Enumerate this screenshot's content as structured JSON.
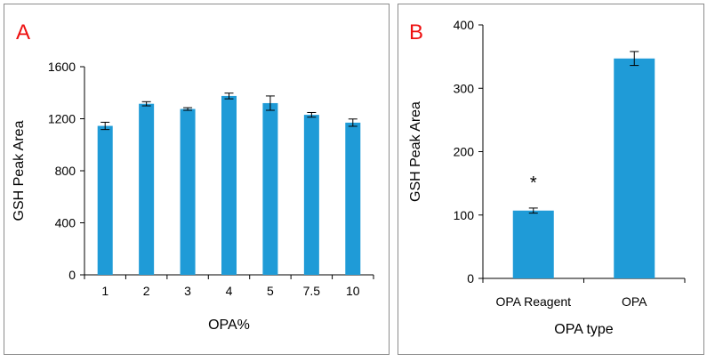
{
  "colors": {
    "bar": "#1f9bd7",
    "panel_label": "#ee1111",
    "frame": "#8c8c8c",
    "axis": "#000000"
  },
  "chart_data": [
    {
      "type": "bar",
      "panel_label": "A",
      "categories": [
        "1",
        "2",
        "3",
        "4",
        "5",
        "7.5",
        "10"
      ],
      "values": [
        1145,
        1315,
        1275,
        1375,
        1320,
        1230,
        1170
      ],
      "errors": [
        28,
        16,
        10,
        22,
        55,
        18,
        28
      ],
      "xlabel": "OPA%",
      "ylabel": "GSH Peak Area",
      "ylim": [
        0,
        1600
      ],
      "yticks": [
        "0",
        "400",
        "800",
        "1200",
        "1600"
      ],
      "ytick_values": [
        0,
        400,
        800,
        1200,
        1600
      ],
      "grid": false
    },
    {
      "type": "bar",
      "panel_label": "B",
      "categories": [
        "OPA Reagent",
        "OPA"
      ],
      "values": [
        107,
        347
      ],
      "errors": [
        4,
        11
      ],
      "annotations": [
        "*",
        ""
      ],
      "xlabel": "OPA type",
      "ylabel": "GSH Peak Area",
      "ylim": [
        0,
        400
      ],
      "yticks": [
        "0",
        "100",
        "200",
        "300",
        "400"
      ],
      "ytick_values": [
        0,
        100,
        200,
        300,
        400
      ],
      "grid": false
    }
  ]
}
